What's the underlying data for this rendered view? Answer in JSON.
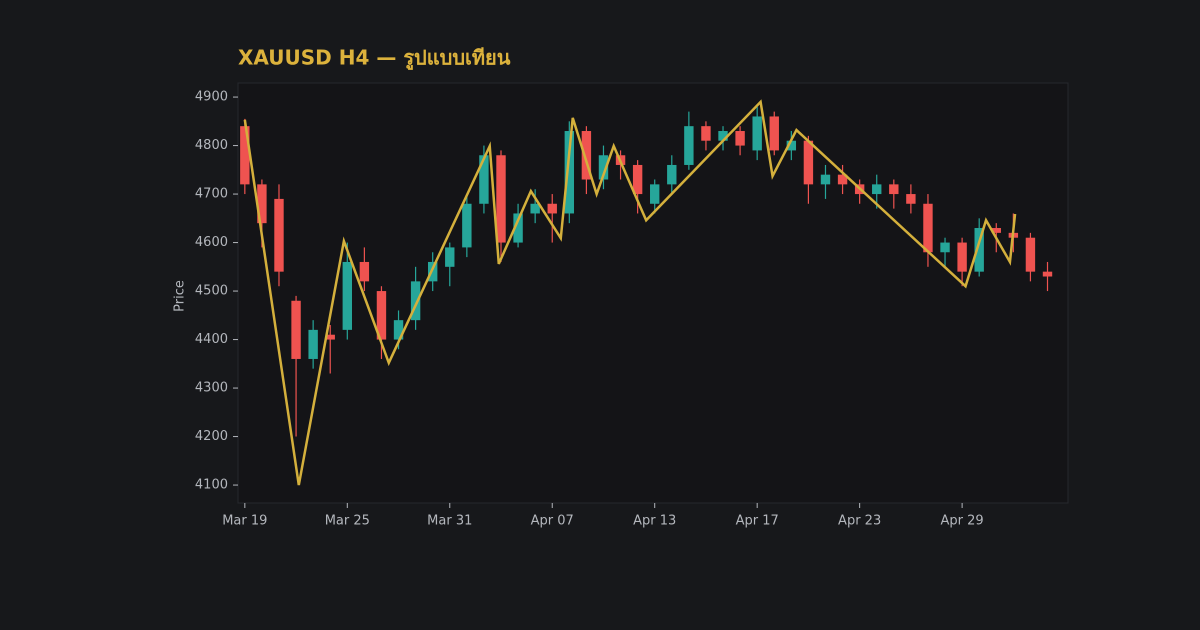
{
  "chart_data": {
    "type": "candlestick",
    "title": "XAUUSD H4 — รูปแบบเทียน",
    "y_label": "Price",
    "xlim": [
      -0.4,
      48.2
    ],
    "ylim": [
      4063,
      4929
    ],
    "xticks": [
      {
        "value": 0,
        "label": "Mar 19"
      },
      {
        "value": 6,
        "label": "Mar 25"
      },
      {
        "value": 12,
        "label": "Mar 31"
      },
      {
        "value": 18,
        "label": "Apr 07"
      },
      {
        "value": 24,
        "label": "Apr 13"
      },
      {
        "value": 30,
        "label": "Apr 17"
      },
      {
        "value": 36,
        "label": "Apr 23"
      },
      {
        "value": 42,
        "label": "Apr 29"
      }
    ],
    "yticks": [
      4100,
      4200,
      4300,
      4400,
      4500,
      4600,
      4700,
      4800,
      4900
    ],
    "up_color": "#26a69a",
    "down_color": "#ef5350",
    "candles": {
      "x": [
        0,
        1,
        2,
        3,
        4,
        5,
        6,
        7,
        8,
        9,
        10,
        11,
        12,
        13,
        14,
        15,
        16,
        17,
        18,
        19,
        20,
        21,
        22,
        23,
        24,
        25,
        26,
        27,
        28,
        29,
        30,
        31,
        32,
        33,
        34,
        35,
        36,
        37,
        38,
        39,
        40,
        41,
        42,
        43,
        44,
        45,
        46,
        47
      ],
      "open": [
        4840,
        4720,
        4690,
        4480,
        4360,
        4410,
        4420,
        4560,
        4500,
        4400,
        4440,
        4520,
        4550,
        4590,
        4680,
        4780,
        4600,
        4660,
        4680,
        4660,
        4830,
        4730,
        4780,
        4760,
        4680,
        4720,
        4760,
        4840,
        4810,
        4830,
        4790,
        4860,
        4790,
        4810,
        4720,
        4740,
        4720,
        4700,
        4720,
        4700,
        4680,
        4580,
        4600,
        4540,
        4630,
        4620,
        4610,
        4540
      ],
      "high": [
        4855,
        4730,
        4720,
        4490,
        4440,
        4430,
        4600,
        4590,
        4510,
        4460,
        4550,
        4580,
        4600,
        4700,
        4800,
        4790,
        4680,
        4710,
        4700,
        4850,
        4840,
        4800,
        4790,
        4770,
        4730,
        4780,
        4870,
        4850,
        4840,
        4840,
        4880,
        4870,
        4830,
        4820,
        4760,
        4760,
        4730,
        4740,
        4730,
        4720,
        4700,
        4610,
        4610,
        4650,
        4640,
        4660,
        4620,
        4560
      ],
      "low": [
        4700,
        4590,
        4510,
        4200,
        4340,
        4330,
        4400,
        4500,
        4360,
        4380,
        4420,
        4500,
        4510,
        4570,
        4660,
        4560,
        4590,
        4640,
        4600,
        4640,
        4700,
        4710,
        4730,
        4660,
        4660,
        4700,
        4750,
        4790,
        4790,
        4780,
        4770,
        4780,
        4770,
        4680,
        4690,
        4700,
        4680,
        4670,
        4670,
        4660,
        4550,
        4550,
        4510,
        4530,
        4580,
        4580,
        4520,
        4500
      ],
      "close": [
        4720,
        4640,
        4540,
        4360,
        4420,
        4400,
        4560,
        4520,
        4400,
        4440,
        4520,
        4560,
        4590,
        4680,
        4780,
        4600,
        4660,
        4680,
        4660,
        4830,
        4730,
        4780,
        4760,
        4700,
        4720,
        4760,
        4840,
        4810,
        4830,
        4800,
        4860,
        4790,
        4810,
        4720,
        4740,
        4720,
        4700,
        4720,
        4700,
        4680,
        4580,
        4600,
        4540,
        4630,
        4620,
        4610,
        4540,
        4530
      ]
    },
    "zigzag": {
      "color": "#d4b03c",
      "x": [
        0,
        3.16,
        5.8,
        8.43,
        14.34,
        14.87,
        16.75,
        18.5,
        19.2,
        20.6,
        21.6,
        23.5,
        30.2,
        30.9,
        32.3,
        42.2,
        43.4,
        44.8,
        45.1
      ],
      "values": [
        4853,
        4100,
        4603,
        4352,
        4799,
        4556,
        4706,
        4609,
        4857,
        4700,
        4799,
        4646,
        4890,
        4737,
        4832,
        4510,
        4646,
        4560,
        4659
      ]
    }
  }
}
